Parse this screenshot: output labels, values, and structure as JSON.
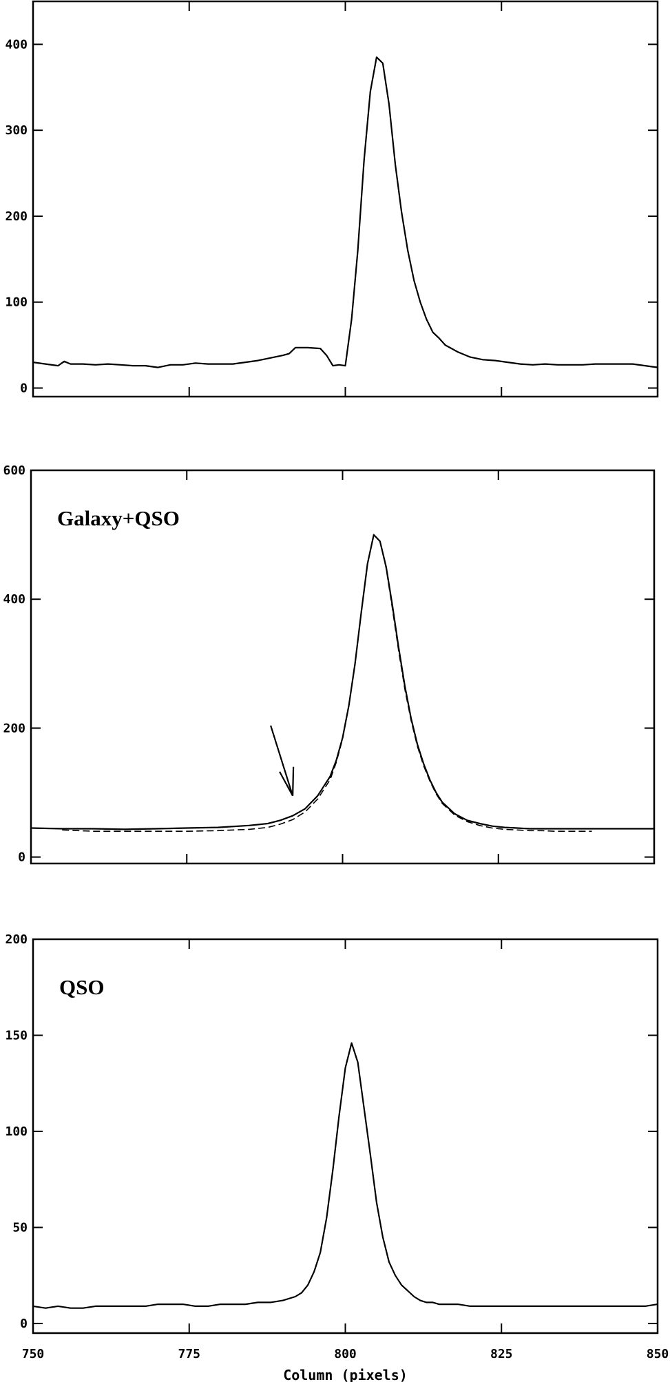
{
  "chart_data": [
    {
      "type": "line",
      "panel_label": "",
      "xlim": [
        750,
        850
      ],
      "ylim": [
        -10,
        450
      ],
      "yticks": [
        0,
        100,
        200,
        300,
        400
      ],
      "xticks": [
        750,
        775,
        800,
        825,
        850
      ],
      "show_x_tick_labels": false,
      "series": [
        {
          "style": "solid",
          "x": [
            750,
            752,
            754,
            755,
            756,
            758,
            760,
            762,
            764,
            766,
            768,
            770,
            772,
            774,
            776,
            778,
            780,
            782,
            784,
            786,
            788,
            790,
            791,
            792,
            794,
            796,
            797,
            798,
            799,
            800,
            801,
            802,
            803,
            804,
            805,
            806,
            807,
            808,
            809,
            810,
            811,
            812,
            813,
            814,
            815,
            816,
            818,
            820,
            822,
            824,
            826,
            828,
            830,
            832,
            834,
            836,
            838,
            840,
            842,
            844,
            846,
            848,
            850
          ],
          "y": [
            30,
            28,
            26,
            31,
            28,
            28,
            27,
            28,
            27,
            26,
            26,
            24,
            27,
            27,
            29,
            28,
            28,
            28,
            30,
            32,
            35,
            38,
            40,
            47,
            47,
            46,
            38,
            26,
            27,
            26,
            80,
            160,
            265,
            345,
            385,
            378,
            330,
            260,
            205,
            160,
            125,
            100,
            80,
            65,
            58,
            50,
            42,
            36,
            33,
            32,
            30,
            28,
            27,
            28,
            27,
            27,
            27,
            28,
            28,
            28,
            28,
            26,
            24
          ]
        }
      ]
    },
    {
      "type": "line",
      "panel_label": "Galaxy+QSO",
      "xlim": [
        750,
        850
      ],
      "ylim": [
        -10,
        600
      ],
      "yticks": [
        0,
        200,
        400,
        600
      ],
      "ytick_labels": [
        "0",
        "200",
        "400",
        "600"
      ],
      "xticks": [
        750,
        775,
        800,
        825,
        850
      ],
      "show_x_tick_labels": false,
      "series": [
        {
          "style": "solid",
          "x": [
            750,
            755,
            760,
            765,
            770,
            775,
            780,
            785,
            788,
            790,
            792,
            794,
            796,
            798,
            799,
            800,
            801,
            802,
            803,
            804,
            805,
            806,
            807,
            808,
            809,
            810,
            811,
            812,
            813,
            814,
            815,
            816,
            818,
            820,
            822,
            824,
            826,
            828,
            830,
            832,
            834,
            836,
            838,
            840,
            842,
            844,
            846,
            848,
            850
          ],
          "y": [
            45,
            44,
            44,
            43,
            44,
            45,
            46,
            49,
            52,
            57,
            64,
            75,
            95,
            125,
            150,
            185,
            235,
            300,
            380,
            455,
            500,
            490,
            450,
            390,
            325,
            265,
            215,
            175,
            145,
            120,
            100,
            85,
            67,
            57,
            52,
            48,
            46,
            45,
            44,
            44,
            44,
            44,
            44,
            44,
            44,
            44,
            44,
            44,
            44
          ]
        },
        {
          "style": "dashed",
          "x": [
            755,
            760,
            765,
            770,
            775,
            780,
            785,
            788,
            790,
            792,
            794,
            796,
            798,
            799,
            800,
            801,
            802,
            803,
            804,
            805,
            806,
            807,
            808,
            809,
            810,
            811,
            812,
            813,
            814,
            815,
            816,
            818,
            820,
            822,
            824,
            826,
            828,
            830,
            832,
            834,
            836,
            838,
            840
          ],
          "y": [
            42,
            40,
            40,
            40,
            40,
            41,
            43,
            46,
            51,
            58,
            70,
            90,
            120,
            147,
            183,
            235,
            300,
            380,
            455,
            500,
            490,
            448,
            385,
            320,
            260,
            212,
            172,
            142,
            118,
            98,
            83,
            65,
            55,
            49,
            45,
            43,
            42,
            41,
            41,
            40,
            40,
            40,
            40
          ]
        }
      ],
      "annotation": "arrow",
      "arrow_target": {
        "x": 792,
        "y": 95
      }
    },
    {
      "type": "line",
      "panel_label": "QSO",
      "xlim": [
        750,
        850
      ],
      "ylim": [
        -5,
        200
      ],
      "yticks": [
        0,
        50,
        100,
        150,
        200
      ],
      "xticks": [
        750,
        775,
        800,
        825,
        850
      ],
      "xtick_labels": [
        "750",
        "775",
        "800",
        "825",
        "850"
      ],
      "show_x_tick_labels": true,
      "xlabel": "Column (pixels)",
      "series": [
        {
          "style": "solid",
          "x": [
            750,
            752,
            754,
            756,
            758,
            760,
            762,
            764,
            766,
            768,
            770,
            772,
            774,
            776,
            778,
            780,
            782,
            784,
            786,
            788,
            790,
            792,
            793,
            794,
            795,
            796,
            797,
            798,
            799,
            800,
            801,
            802,
            803,
            804,
            805,
            806,
            807,
            808,
            809,
            810,
            811,
            812,
            813,
            814,
            815,
            816,
            818,
            820,
            822,
            824,
            826,
            828,
            830,
            832,
            834,
            836,
            838,
            840,
            842,
            844,
            846,
            848,
            850
          ],
          "y": [
            9,
            8,
            9,
            8,
            8,
            9,
            9,
            9,
            9,
            9,
            10,
            10,
            10,
            9,
            9,
            10,
            10,
            10,
            11,
            11,
            12,
            14,
            16,
            20,
            27,
            37,
            55,
            80,
            108,
            133,
            146,
            136,
            112,
            88,
            63,
            45,
            32,
            25,
            20,
            17,
            14,
            12,
            11,
            11,
            10,
            10,
            10,
            9,
            9,
            9,
            9,
            9,
            9,
            9,
            9,
            9,
            9,
            9,
            9,
            9,
            9,
            9,
            10
          ]
        }
      ]
    }
  ]
}
